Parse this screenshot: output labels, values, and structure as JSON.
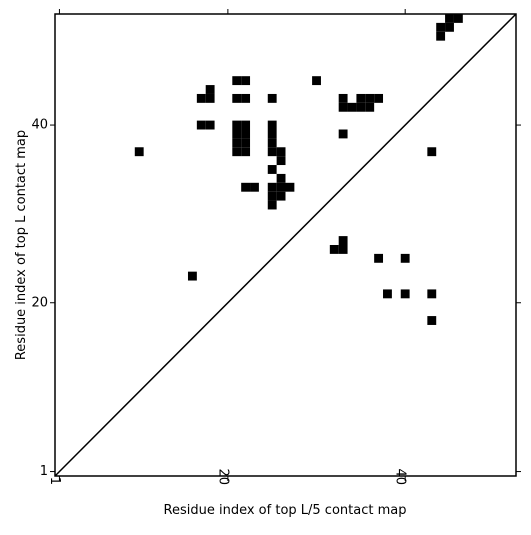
{
  "chart_data": {
    "type": "scatter",
    "marker": "square",
    "color": "#000000",
    "xlabel": "Residue index of top L/5 contact map",
    "ylabel": "Residue index of top L contact map",
    "xlim": [
      0.5,
      52.5
    ],
    "ylim": [
      0.5,
      52.5
    ],
    "xticks": [
      1,
      20,
      40
    ],
    "yticks": [
      1,
      20,
      40
    ],
    "diagonal": true,
    "x": [
      10,
      16,
      18,
      17,
      18,
      17,
      18,
      21,
      22,
      21,
      22,
      21,
      22,
      21,
      22,
      21,
      22,
      21,
      22,
      22,
      23,
      25,
      25,
      25,
      25,
      25,
      26,
      26,
      25,
      26,
      25,
      26,
      27,
      25,
      26,
      25,
      30,
      33,
      33,
      34,
      35,
      36,
      35,
      36,
      37,
      33,
      43,
      44,
      44,
      45,
      45,
      46,
      32,
      33,
      33,
      37,
      40,
      38,
      40,
      43,
      43
    ],
    "y": [
      37,
      23,
      44,
      43,
      43,
      40,
      40,
      45,
      45,
      43,
      43,
      40,
      40,
      39,
      39,
      38,
      38,
      37,
      37,
      33,
      33,
      43,
      40,
      39,
      38,
      37,
      37,
      36,
      35,
      34,
      33,
      33,
      33,
      32,
      32,
      31,
      45,
      43,
      42,
      42,
      42,
      42,
      43,
      43,
      43,
      39,
      37,
      51,
      50,
      51,
      52,
      52,
      26,
      26,
      27,
      25,
      25,
      21,
      21,
      21,
      18
    ]
  }
}
